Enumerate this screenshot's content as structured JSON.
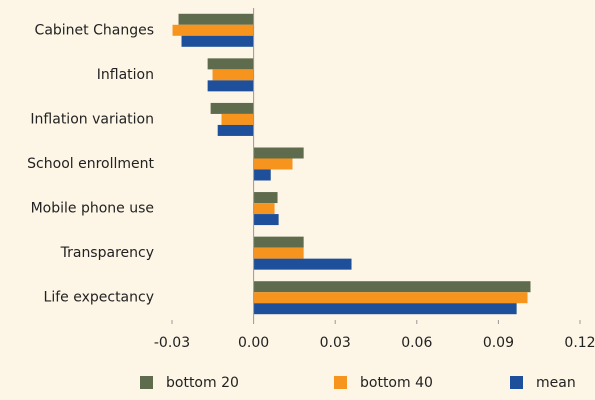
{
  "chart_data": {
    "type": "barh",
    "categories": [
      "Cabinet Changes",
      "Inflation",
      "Inflation variation",
      "School enrollment",
      "Mobile phone use",
      "Transparency",
      "Life expectancy"
    ],
    "series": [
      {
        "name": "bottom 20",
        "color": "#5e6b4c",
        "values": [
          -0.0276,
          -0.0169,
          -0.0158,
          0.0184,
          0.0088,
          0.0184,
          0.1018
        ]
      },
      {
        "name": "bottom 40",
        "color": "#f7941d",
        "values": [
          -0.0298,
          -0.0151,
          -0.0118,
          0.0143,
          0.0077,
          0.0184,
          0.1007
        ]
      },
      {
        "name": "mean",
        "color": "#1d4f9a",
        "values": [
          -0.0265,
          -0.0169,
          -0.0132,
          0.0063,
          0.0092,
          0.036,
          0.0967
        ]
      }
    ],
    "xlim": [
      -0.03,
      0.12
    ],
    "xticks": [
      -0.03,
      {
        "value": 0,
        "label": "0.00"
      },
      0.03,
      0.06,
      0.09,
      0.12
    ],
    "grid": false
  }
}
